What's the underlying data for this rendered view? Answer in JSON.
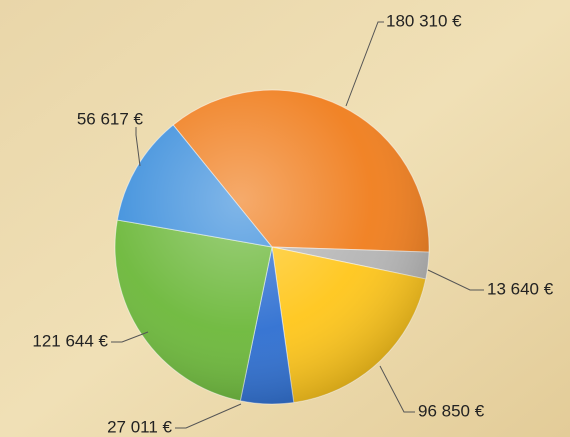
{
  "chart_data": {
    "type": "pie",
    "values": [
      180310,
      13640,
      96850,
      27011,
      121644,
      56617
    ],
    "value_labels": [
      "180 310 €",
      "13 640 €",
      "96 850 €",
      "27 011 €",
      "121 644 €",
      "56 617 €"
    ],
    "colors": [
      "#f07d1c",
      "#b5b5b5",
      "#ffc61a",
      "#2e6fd1",
      "#6cb83a",
      "#3d8fdc"
    ]
  }
}
